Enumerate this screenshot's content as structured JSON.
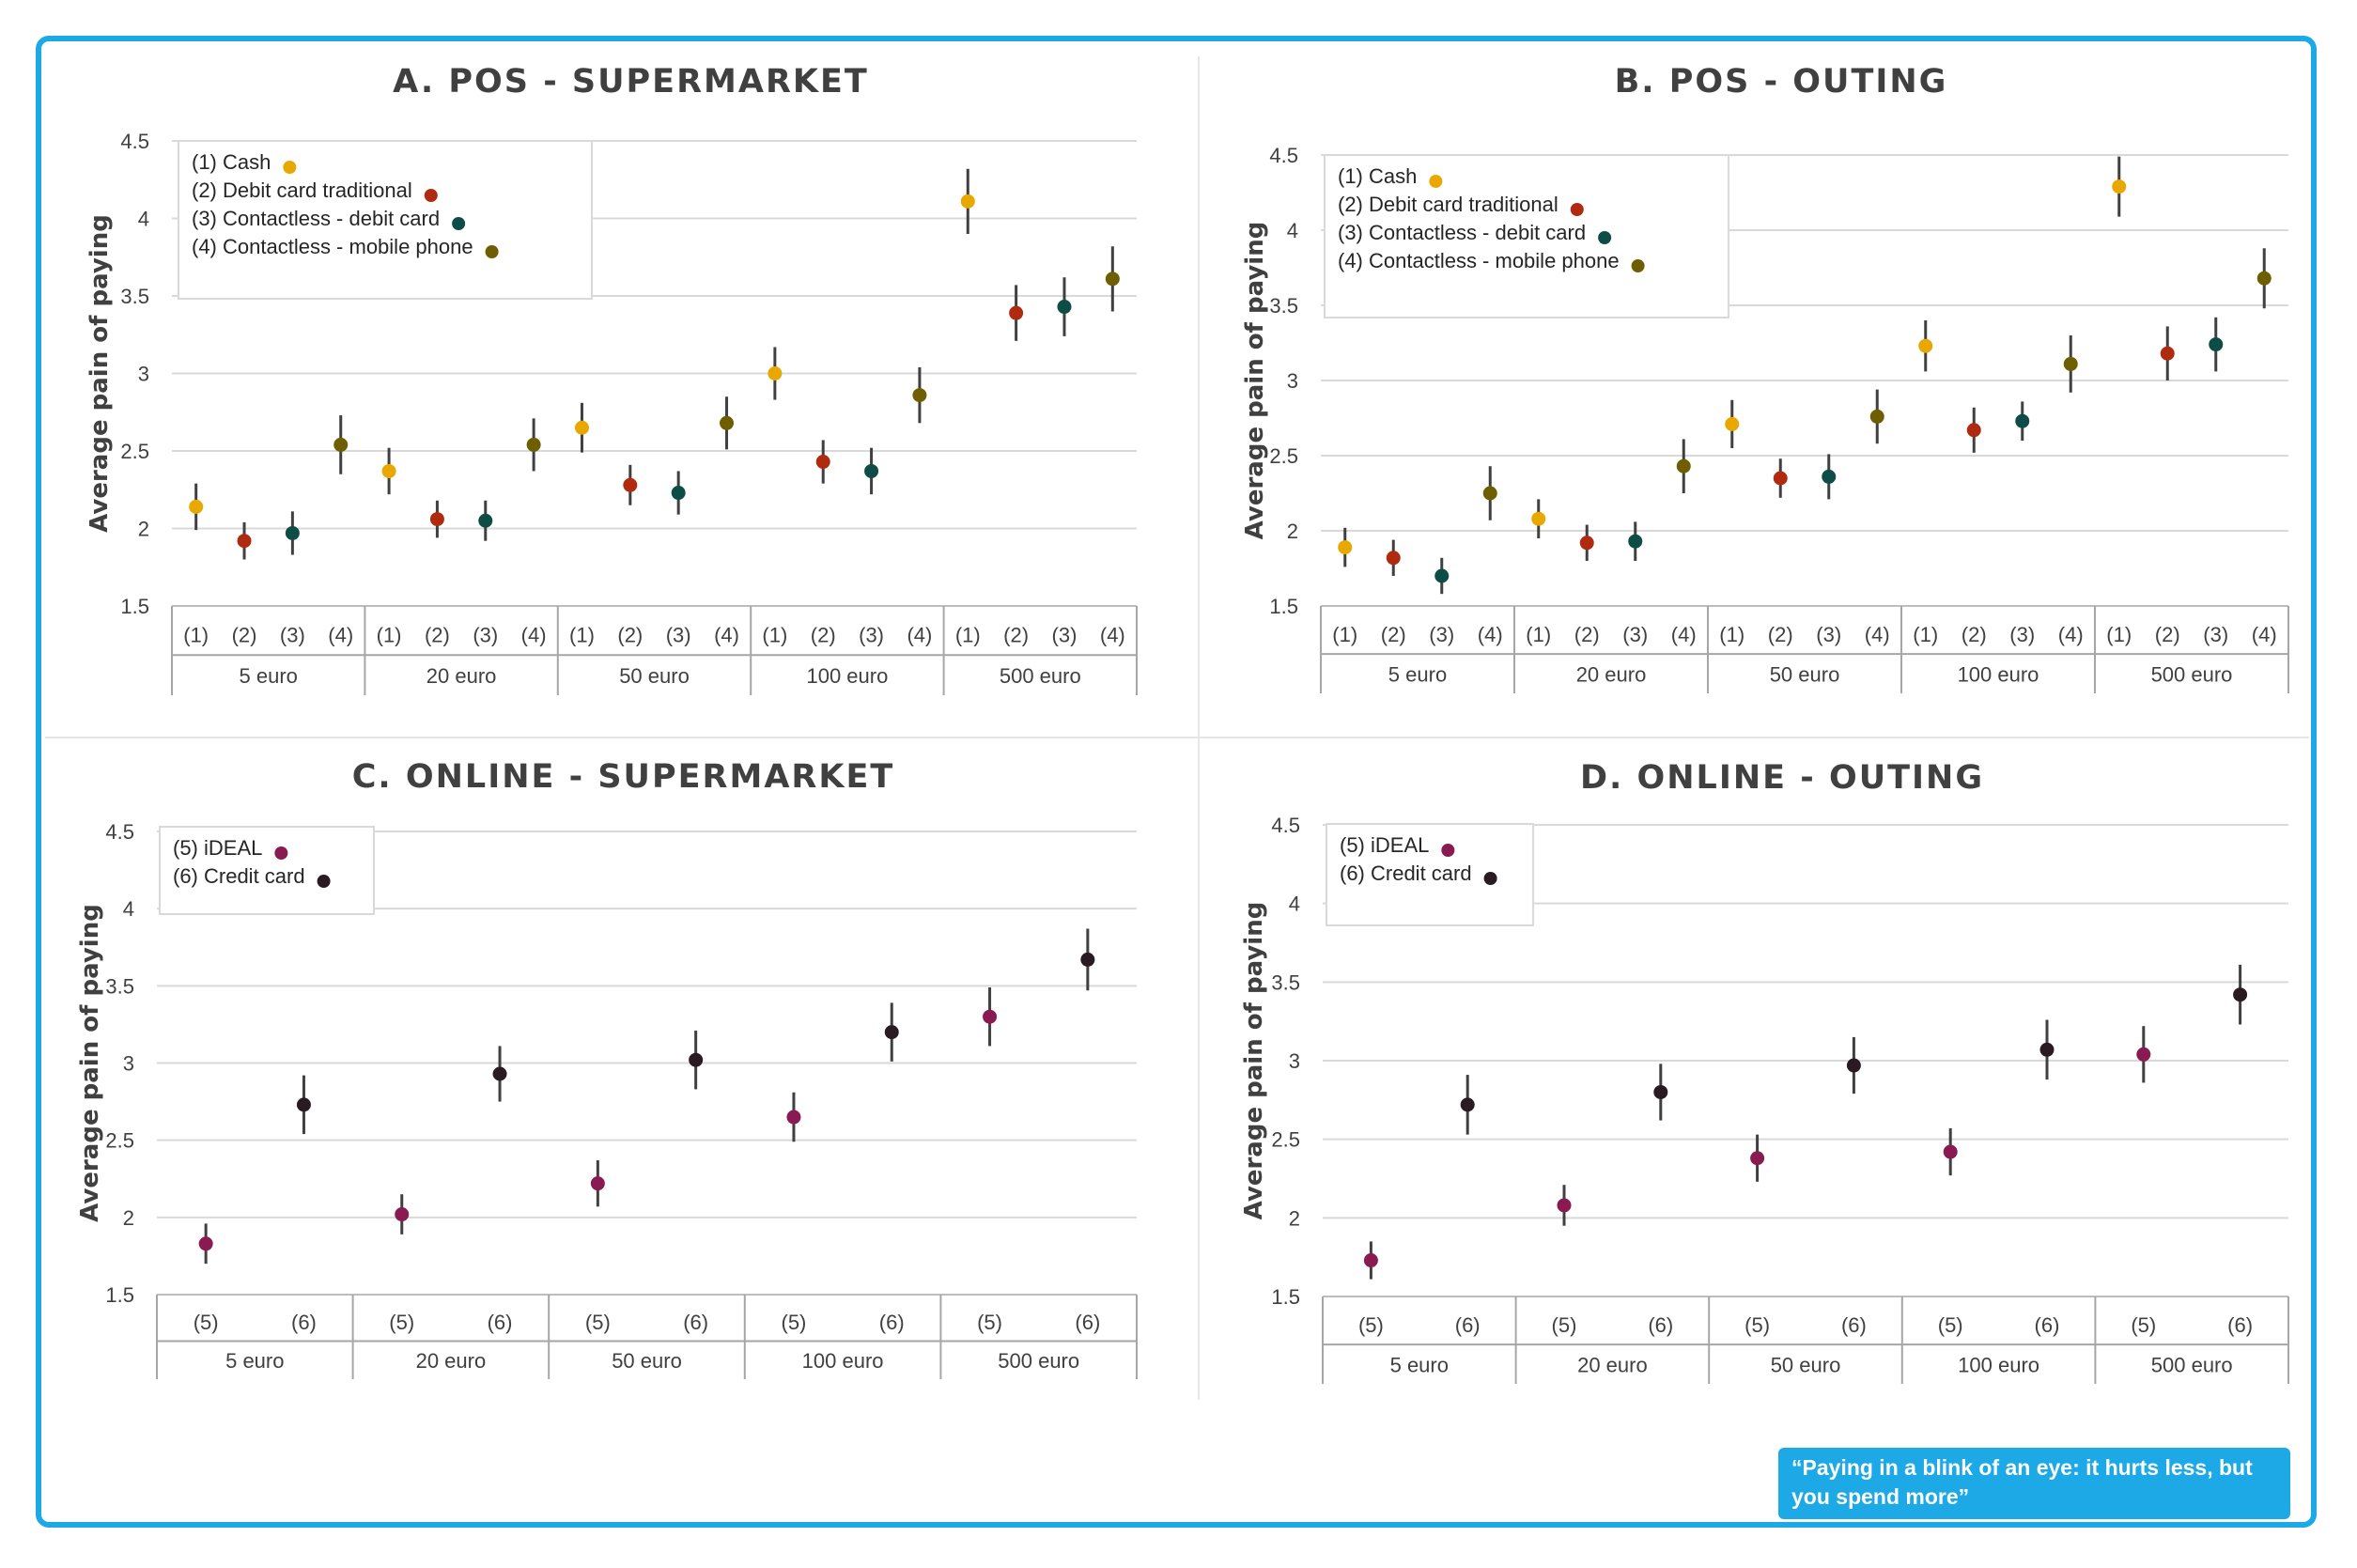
{
  "caption": "“Paying in a blink of an eye: it hurts less, but you spend more”",
  "colors": {
    "frame": "#1ca9e6",
    "cash": "#e8a800",
    "debit_traditional": "#b02a10",
    "contactless_debit": "#0d4d45",
    "contactless_mobile": "#6e5e00",
    "ideal": "#8a1a52",
    "credit_card": "#2a1a22",
    "errorbar": "#404040"
  },
  "chart_data": [
    {
      "type": "scatter",
      "title": "A. POS - SUPERMARKET",
      "ylabel": "Average pain of paying",
      "ylim": [
        1.5,
        4.5
      ],
      "yticks": [
        "1.5",
        "2",
        "2.5",
        "3",
        "3.5",
        "4",
        "4.5"
      ],
      "grid": true,
      "legend_position": "top-left",
      "groups": [
        "5 euro",
        "20 euro",
        "50 euro",
        "100 euro",
        "500 euro"
      ],
      "subcategories": [
        "(1)",
        "(2)",
        "(3)",
        "(4)"
      ],
      "series": [
        {
          "name": "(1) Cash",
          "color_key": "cash",
          "values": [
            2.14,
            2.37,
            2.65,
            3.0,
            4.11
          ],
          "errors": [
            0.15,
            0.15,
            0.16,
            0.17,
            0.21
          ]
        },
        {
          "name": "(2) Debit card traditional",
          "color_key": "debit_traditional",
          "values": [
            1.92,
            2.06,
            2.28,
            2.43,
            3.39
          ],
          "errors": [
            0.12,
            0.12,
            0.13,
            0.14,
            0.18
          ]
        },
        {
          "name": "(3) Contactless - debit card",
          "color_key": "contactless_debit",
          "values": [
            1.97,
            2.05,
            2.23,
            2.37,
            3.43
          ],
          "errors": [
            0.14,
            0.13,
            0.14,
            0.15,
            0.19
          ]
        },
        {
          "name": "(4) Contactless - mobile phone",
          "color_key": "contactless_mobile",
          "values": [
            2.54,
            2.54,
            2.68,
            2.86,
            3.61
          ],
          "errors": [
            0.19,
            0.17,
            0.17,
            0.18,
            0.21
          ]
        }
      ]
    },
    {
      "type": "scatter",
      "title": "B. POS - OUTING",
      "ylabel": "Average pain of paying",
      "ylim": [
        1.5,
        4.5
      ],
      "yticks": [
        "1.5",
        "2",
        "2.5",
        "3",
        "3.5",
        "4",
        "4.5"
      ],
      "grid": true,
      "legend_position": "top-left",
      "groups": [
        "5 euro",
        "20 euro",
        "50 euro",
        "100 euro",
        "500 euro"
      ],
      "subcategories": [
        "(1)",
        "(2)",
        "(3)",
        "(4)"
      ],
      "series": [
        {
          "name": "(1) Cash",
          "color_key": "cash",
          "values": [
            1.89,
            2.08,
            2.71,
            3.23,
            4.29
          ],
          "errors": [
            0.13,
            0.13,
            0.16,
            0.17,
            0.2
          ]
        },
        {
          "name": "(2) Debit card traditional",
          "color_key": "debit_traditional",
          "values": [
            1.82,
            1.92,
            2.35,
            2.67,
            3.18
          ],
          "errors": [
            0.12,
            0.12,
            0.13,
            0.15,
            0.18
          ]
        },
        {
          "name": "(3) Contactless - debit card",
          "color_key": "contactless_debit",
          "values": [
            1.7,
            1.93,
            2.36,
            2.73,
            3.24
          ],
          "errors": [
            0.12,
            0.13,
            0.15,
            0.13,
            0.18
          ]
        },
        {
          "name": "(4) Contactless - mobile phone",
          "color_key": "contactless_mobile",
          "values": [
            2.25,
            2.43,
            2.76,
            3.11,
            3.68
          ],
          "errors": [
            0.18,
            0.18,
            0.18,
            0.19,
            0.2
          ]
        }
      ]
    },
    {
      "type": "scatter",
      "title": "C. ONLINE - SUPERMARKET",
      "ylabel": "Average pain of paying",
      "ylim": [
        1.5,
        4.5
      ],
      "yticks": [
        "1.5",
        "2",
        "2.5",
        "3",
        "3.5",
        "4",
        "4.5"
      ],
      "grid": true,
      "legend_position": "top-left",
      "groups": [
        "5 euro",
        "20 euro",
        "50 euro",
        "100 euro",
        "500 euro"
      ],
      "subcategories": [
        "(5)",
        "(6)"
      ],
      "series": [
        {
          "name": "(5) iDEAL",
          "color_key": "ideal",
          "values": [
            1.83,
            2.02,
            2.22,
            2.65,
            3.3
          ],
          "errors": [
            0.13,
            0.13,
            0.15,
            0.16,
            0.19
          ]
        },
        {
          "name": "(6) Credit card",
          "color_key": "credit_card",
          "values": [
            2.73,
            2.93,
            3.02,
            3.2,
            3.67
          ],
          "errors": [
            0.19,
            0.18,
            0.19,
            0.19,
            0.2
          ]
        }
      ]
    },
    {
      "type": "scatter",
      "title": "D. ONLINE - OUTING",
      "ylabel": "Average pain of paying",
      "ylim": [
        1.5,
        4.5
      ],
      "yticks": [
        "1.5",
        "2",
        "2.5",
        "3",
        "3.5",
        "4",
        "4.5"
      ],
      "grid": true,
      "legend_position": "top-left",
      "groups": [
        "5 euro",
        "20 euro",
        "50 euro",
        "100 euro",
        "500 euro"
      ],
      "subcategories": [
        "(5)",
        "(6)"
      ],
      "series": [
        {
          "name": "(5) iDEAL",
          "color_key": "ideal",
          "values": [
            1.73,
            2.08,
            2.38,
            2.42,
            3.04
          ],
          "errors": [
            0.12,
            0.13,
            0.15,
            0.15,
            0.18
          ]
        },
        {
          "name": "(6) Credit card",
          "color_key": "credit_card",
          "values": [
            2.72,
            2.8,
            2.97,
            3.07,
            3.42
          ],
          "errors": [
            0.19,
            0.18,
            0.18,
            0.19,
            0.19
          ]
        }
      ]
    }
  ]
}
